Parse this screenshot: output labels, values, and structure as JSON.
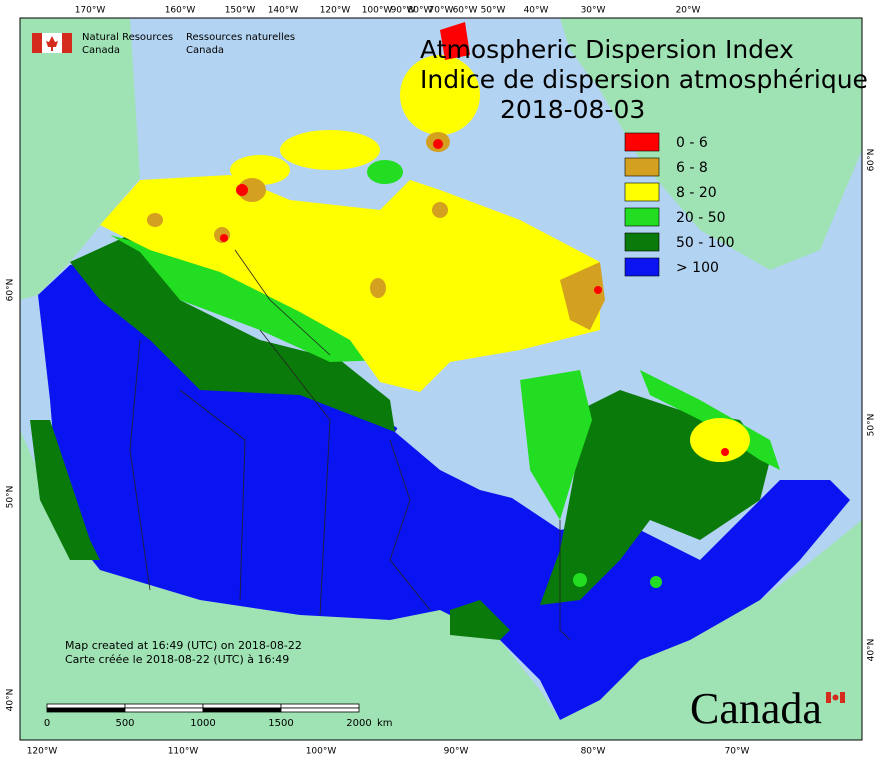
{
  "header": {
    "org_en": [
      "Natural Resources",
      "Canada"
    ],
    "org_fr": [
      "Ressources naturelles",
      "Canada"
    ]
  },
  "title": {
    "en": "Atmospheric Dispersion Index",
    "fr": "Indice de dispersion atmosphérique",
    "date": "2018-08-03"
  },
  "legend": {
    "items": [
      {
        "label": "0 - 6",
        "color": "#ff0000"
      },
      {
        "label": "6 - 8",
        "color": "#d4a020"
      },
      {
        "label": "8 - 20",
        "color": "#ffff00"
      },
      {
        "label": "20 - 50",
        "color": "#22dd22"
      },
      {
        "label": "50 - 100",
        "color": "#0a7a0a"
      },
      {
        "label": "> 100",
        "color": "#0a14f0"
      }
    ]
  },
  "footnote": [
    "Map created at 16:49 (UTC) on 2018-08-22",
    "Carte créée le 2018-08-22 (UTC) à 16:49"
  ],
  "scale_bar": {
    "labels": [
      "0",
      "500",
      "1000",
      "1500",
      "2000"
    ],
    "unit": "km"
  },
  "graticule": {
    "top": [
      "170°W",
      "160°W",
      "150°W",
      "140°W",
      "120°W",
      "100°W",
      "90°W",
      "80°W",
      "70°W",
      "60°W",
      "50°W",
      "40°W",
      "30°W",
      "20°W"
    ],
    "bottom": [
      "120°W",
      "110°W",
      "100°W",
      "90°W",
      "80°W",
      "70°W"
    ],
    "left": [
      "60°N",
      "50°N",
      "40°N"
    ],
    "right": [
      "60°N",
      "50°N",
      "40°N"
    ]
  },
  "wordmark": "Canada"
}
